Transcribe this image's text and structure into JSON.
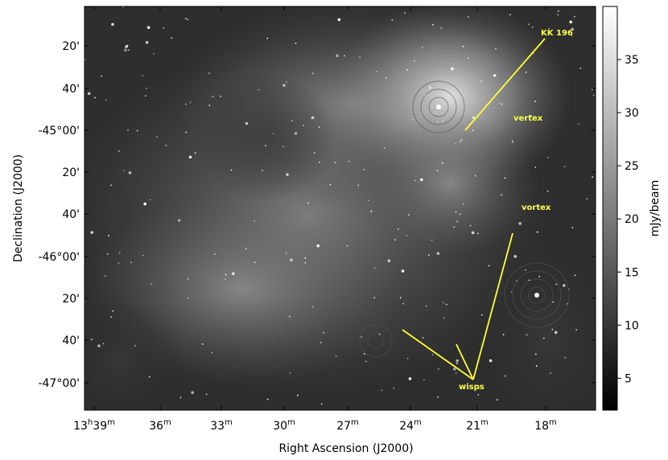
{
  "image": {
    "x_axis": {
      "label": "Right Ascension (J2000)",
      "ticks": [
        {
          "hours": "13",
          "h": "h",
          "minutes": "39",
          "m": "m"
        },
        {
          "minutes": "36",
          "m": "m"
        },
        {
          "minutes": "33",
          "m": "m"
        },
        {
          "minutes": "30",
          "m": "m"
        },
        {
          "minutes": "27",
          "m": "m"
        },
        {
          "minutes": "24",
          "m": "m"
        },
        {
          "minutes": "21",
          "m": "m"
        },
        {
          "minutes": "18",
          "m": "m"
        }
      ]
    },
    "y_axis": {
      "label": "Declination (J2000)",
      "ticks": [
        "20'",
        "40'",
        "-45°00'",
        "20'",
        "40'",
        "-46°00'",
        "20'",
        "40'",
        "-47°00'"
      ]
    },
    "colorbar": {
      "label": "mJy/beam",
      "range": [
        2,
        40
      ],
      "ticks": [
        5,
        10,
        15,
        20,
        25,
        30,
        35
      ]
    },
    "annotations": [
      "KK 196",
      "vertex",
      "vortex",
      "wisps"
    ]
  }
}
